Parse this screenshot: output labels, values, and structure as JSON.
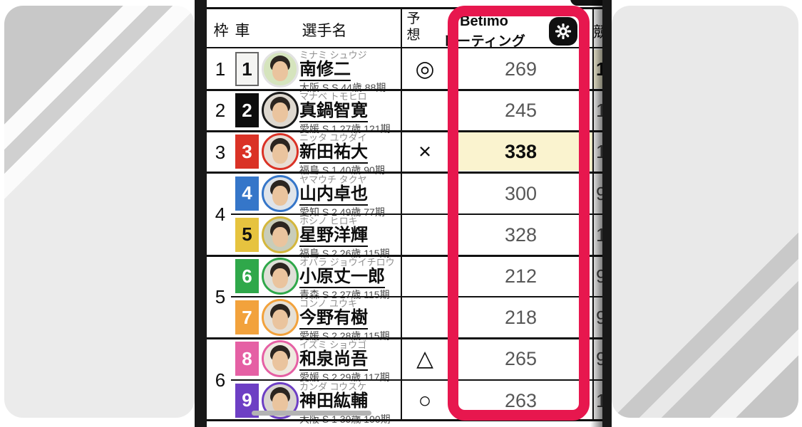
{
  "header": {
    "waku_label": "枠",
    "car_label": "車",
    "name_label": "選手名",
    "prediction_top": "予",
    "prediction_bottom": "想",
    "brand": "Betimo",
    "rating_label": "レーティング",
    "gear_icon": "gear-settings",
    "next_column_partial": "競"
  },
  "highlight_frame_color": "#e7174e",
  "rating_highlight_bg": "#faf3cf",
  "waku_groups": [
    {
      "label": "1",
      "row_start": 0,
      "row_span": 1
    },
    {
      "label": "2",
      "row_start": 1,
      "row_span": 1
    },
    {
      "label": "3",
      "row_start": 2,
      "row_span": 1
    },
    {
      "label": "4",
      "row_start": 3,
      "row_span": 2
    },
    {
      "label": "5",
      "row_start": 5,
      "row_span": 2
    },
    {
      "label": "6",
      "row_start": 7,
      "row_span": 2
    }
  ],
  "riders": [
    {
      "car": "1",
      "kana": "ミナミ シュウジ",
      "name": "南修二",
      "info": "大阪 S S 44歳 88期",
      "prediction": "◎",
      "rating": "269",
      "rating_highlight": false,
      "next_partial": "1",
      "next_highlight": true,
      "car_color": "#f4f4f2",
      "car_text_color": "#111111",
      "car_border": "#666666",
      "ring_color": "#e2e2e2",
      "photo_bg": "#d5e4bd"
    },
    {
      "car": "2",
      "kana": "マナベ トモヒロ",
      "name": "真鍋智寛",
      "info": "愛媛 S 1 27歳 121期",
      "prediction": "",
      "rating": "245",
      "rating_highlight": false,
      "next_partial": "1",
      "next_highlight": false,
      "car_color": "#0d0d0d",
      "car_text_color": "#ffffff",
      "car_border": "#0d0d0d",
      "ring_color": "#1a1a1a",
      "photo_bg": "#ded8cf"
    },
    {
      "car": "3",
      "kana": "ニッタ ユウダイ",
      "name": "新田祐大",
      "info": "福島 S 1 40歳 90期",
      "prediction": "×",
      "rating": "338",
      "rating_highlight": true,
      "next_partial": "1",
      "next_highlight": false,
      "car_color": "#da3226",
      "car_text_color": "#ffffff",
      "car_border": "#da3226",
      "ring_color": "#da3226",
      "photo_bg": "#e8ddd4"
    },
    {
      "car": "4",
      "kana": "ヤマウチ タクヤ",
      "name": "山内卓也",
      "info": "愛知 S 2 49歳 77期",
      "prediction": "",
      "rating": "300",
      "rating_highlight": false,
      "next_partial": "9",
      "next_highlight": false,
      "car_color": "#3576c9",
      "car_text_color": "#ffffff",
      "car_border": "#3576c9",
      "ring_color": "#3576c9",
      "photo_bg": "#dfe4ea"
    },
    {
      "car": "5",
      "kana": "ホシノ ヒロキ",
      "name": "星野洋輝",
      "info": "福島 S 2 26歳 115期",
      "prediction": "",
      "rating": "328",
      "rating_highlight": false,
      "next_partial": "1",
      "next_highlight": false,
      "car_color": "#e6c33f",
      "car_text_color": "#111111",
      "car_border": "#e6c33f",
      "ring_color": "#d4b73c",
      "photo_bg": "#c9cdb9"
    },
    {
      "car": "6",
      "kana": "オバラ ジョウイチロウ",
      "name": "小原丈一郎",
      "info": "青森 S 2 27歳 115期",
      "prediction": "",
      "rating": "212",
      "rating_highlight": false,
      "next_partial": "9",
      "next_highlight": false,
      "car_color": "#2fa84a",
      "car_text_color": "#ffffff",
      "car_border": "#2fa84a",
      "ring_color": "#2fa84a",
      "photo_bg": "#dfe0d8"
    },
    {
      "car": "7",
      "kana": "コンノ ユウキ",
      "name": "今野有樹",
      "info": "愛媛 S 2 28歳 115期",
      "prediction": "",
      "rating": "218",
      "rating_highlight": false,
      "next_partial": "9",
      "next_highlight": false,
      "car_color": "#f2a23c",
      "car_text_color": "#ffffff",
      "car_border": "#f2a23c",
      "ring_color": "#f2a23c",
      "photo_bg": "#e6e0d6"
    },
    {
      "car": "8",
      "kana": "イズミ ショウゴ",
      "name": "和泉尚吾",
      "info": "愛媛 S 2 29歳 117期",
      "prediction": "△",
      "rating": "265",
      "rating_highlight": false,
      "next_partial": "9",
      "next_highlight": false,
      "car_color": "#e560a4",
      "car_text_color": "#ffffff",
      "car_border": "#e560a4",
      "ring_color": "#e560a4",
      "photo_bg": "#efe9df"
    },
    {
      "car": "9",
      "kana": "カンダ コウスケ",
      "name": "神田紘輔",
      "info": "大阪 S 1 39歳 100期",
      "prediction": "○",
      "rating": "263",
      "rating_highlight": false,
      "next_partial": "1",
      "next_highlight": false,
      "car_color": "#6d3fc4",
      "car_text_color": "#ffffff",
      "car_border": "#6d3fc4",
      "ring_color": "#6d3fc4",
      "photo_bg": "#d9d4cf"
    }
  ]
}
